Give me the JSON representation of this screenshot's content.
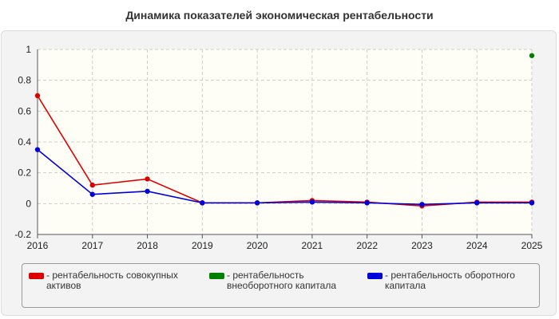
{
  "title": "Динамика показателей экономическая рентабельности",
  "chart_data": {
    "type": "line",
    "title": "Динамика показателей экономическая рентабельности",
    "xlabel": "",
    "ylabel": "",
    "categories": [
      "2016",
      "2017",
      "2018",
      "2019",
      "2020",
      "2021",
      "2022",
      "2023",
      "2024",
      "2025"
    ],
    "ylim": [
      -0.2,
      1
    ],
    "yticks": [
      "-0.2",
      "0",
      "0.2",
      "0.4",
      "0.6",
      "0.8",
      "1"
    ],
    "grid": true,
    "legend_position": "bottom",
    "series": [
      {
        "name": "- рентабельность совокупных активов",
        "color": "#dd0000",
        "values": [
          0.7,
          0.12,
          0.16,
          0.005,
          0.005,
          0.02,
          0.01,
          -0.015,
          0.01,
          0.01
        ]
      },
      {
        "name": "- рентабельность внеоборотного капитала",
        "color": "#008000",
        "values": [
          null,
          null,
          null,
          null,
          null,
          null,
          null,
          null,
          null,
          0.96
        ]
      },
      {
        "name": "- рентабельность оборотного капитала",
        "color": "#0000dd",
        "values": [
          0.35,
          0.06,
          0.08,
          0.005,
          0.005,
          0.01,
          0.005,
          -0.005,
          0.005,
          0.005
        ]
      }
    ]
  },
  "legend": {
    "items": [
      {
        "label": "- рентабельность совокупных активов",
        "color": "#dd0000"
      },
      {
        "label": "- рентабельность внеоборотного капитала",
        "color": "#008000"
      },
      {
        "label": "- рентабельность оборотного капитала",
        "color": "#0000dd"
      }
    ]
  }
}
